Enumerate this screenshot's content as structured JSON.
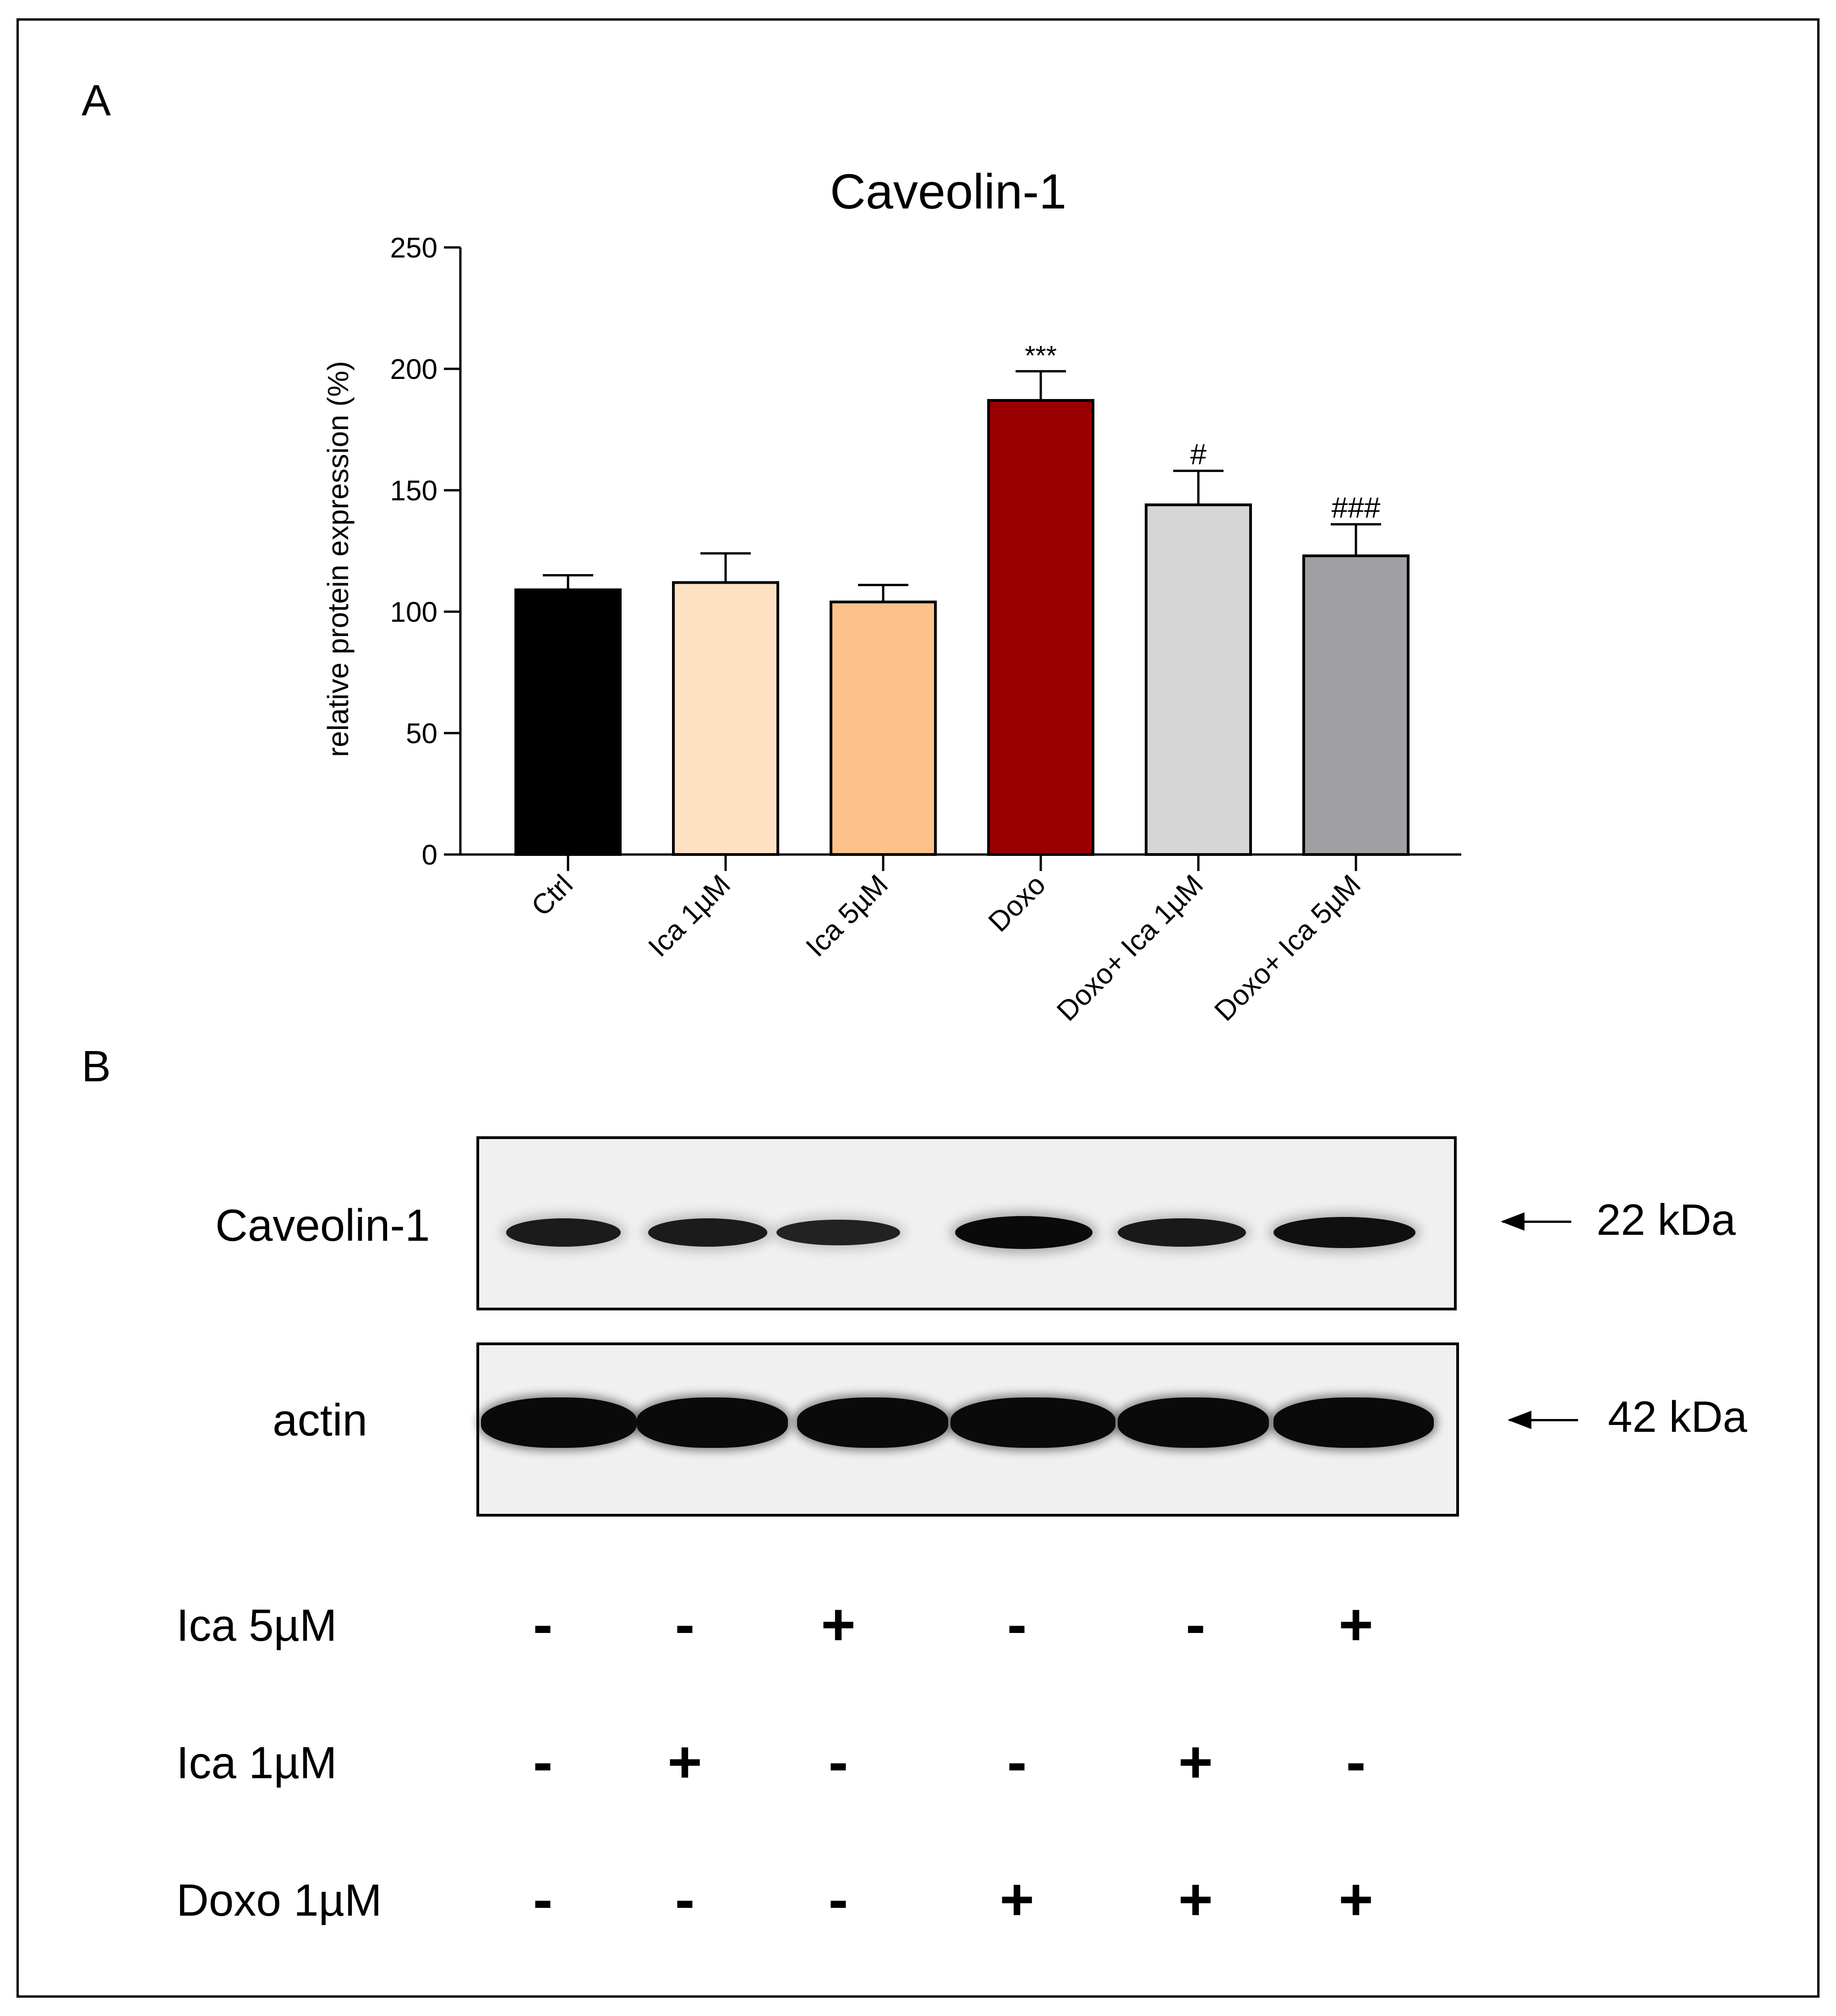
{
  "panel_a_label": "A",
  "panel_b_label": "B",
  "chart_data": {
    "type": "bar",
    "title": "Caveolin-1",
    "ylabel": "relative protein expression (%)",
    "xlabel": "",
    "ylim": [
      0,
      250
    ],
    "yticks": [
      0,
      50,
      100,
      150,
      200,
      250
    ],
    "categories": [
      "Ctrl",
      "Ica 1µM",
      "Ica 5µM",
      "Doxo",
      "Doxo+ Ica 1µM",
      "Doxo+ Ica 5µM"
    ],
    "values": [
      109,
      112,
      104,
      187,
      144,
      123
    ],
    "errors": [
      6,
      12,
      7,
      12,
      14,
      13
    ],
    "annotations": [
      "",
      "",
      "",
      "***",
      "#",
      "###"
    ],
    "colors": [
      "#000000",
      "#fde1c2",
      "#fdc28a",
      "#9b0000",
      "#d6d6d6",
      "#a0a0a4"
    ],
    "grid": false
  },
  "blot": {
    "rows": [
      {
        "label": "Caveolin-1",
        "kda": "22 kDa"
      },
      {
        "label": "actin",
        "kda": "42 kDa"
      }
    ],
    "caveolin_intensity": [
      0.72,
      0.72,
      0.6,
      1.0,
      0.75,
      0.9
    ],
    "actin_intensity": [
      1.0,
      1.0,
      1.0,
      1.0,
      1.0,
      1.0
    ]
  },
  "treatments": [
    {
      "label": "Ica 5µM",
      "signs": [
        "-",
        "-",
        "+",
        "-",
        "-",
        "+"
      ]
    },
    {
      "label": "Ica 1µM",
      "signs": [
        "-",
        "+",
        "-",
        "-",
        "+",
        "-"
      ]
    },
    {
      "label": "Doxo 1µM",
      "signs": [
        "-",
        "-",
        "-",
        "+",
        "+",
        "+"
      ]
    }
  ]
}
